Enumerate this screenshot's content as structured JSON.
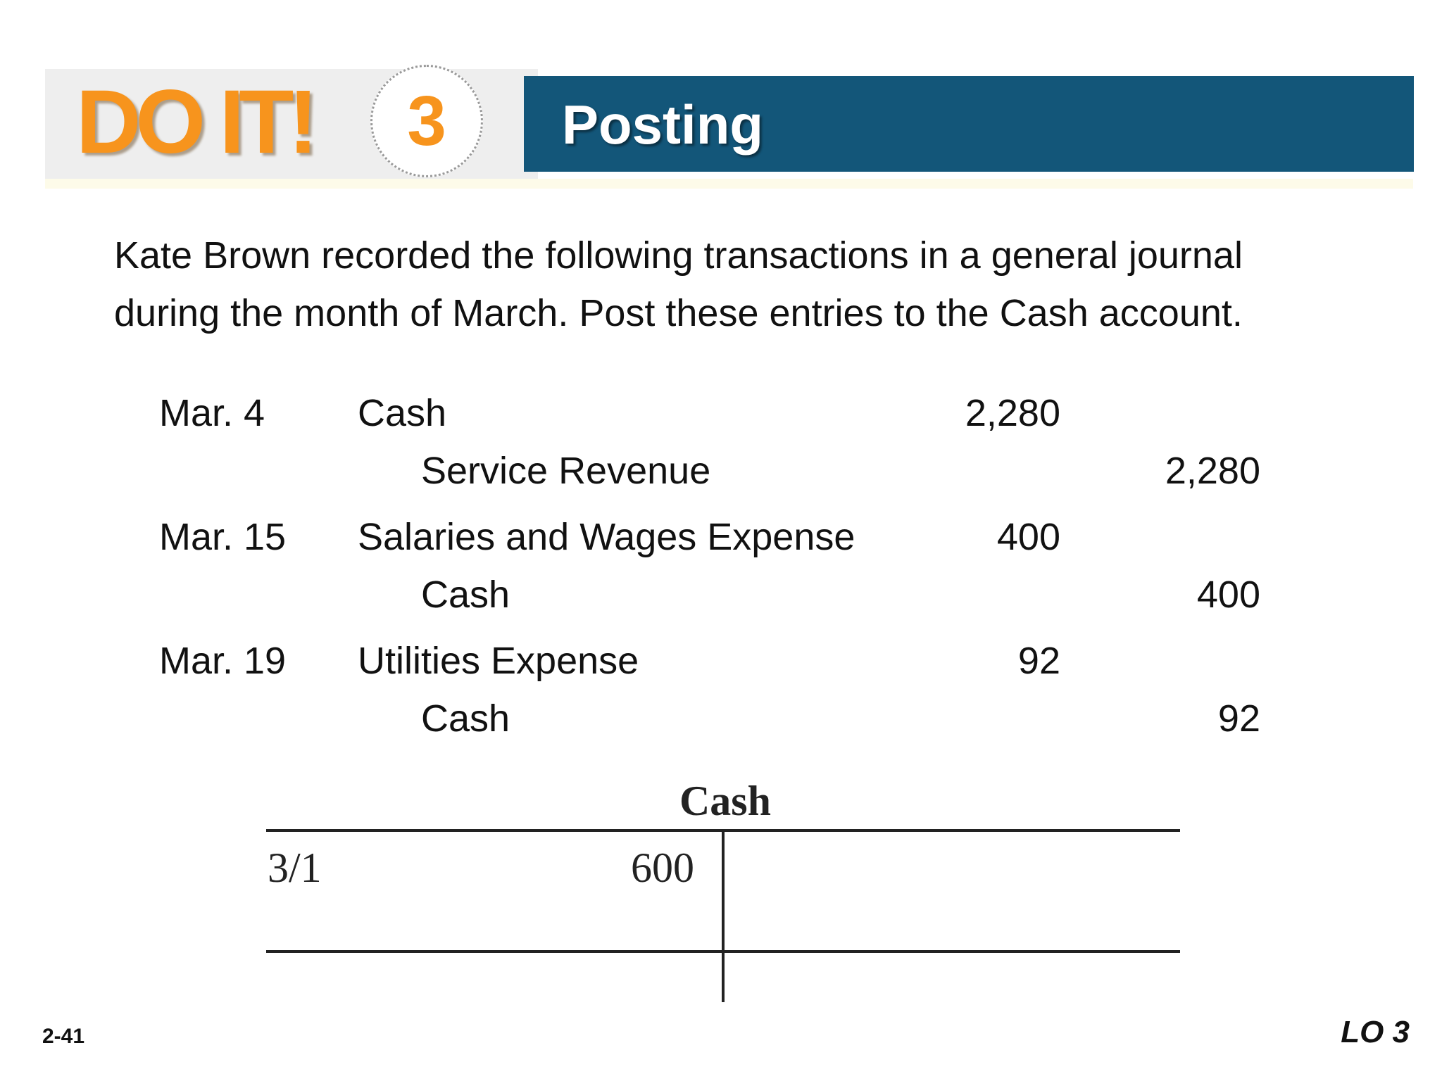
{
  "header": {
    "do_it_label": "DO IT!",
    "number": "3",
    "title": "Posting"
  },
  "intro": {
    "line1": "Kate Brown recorded the following transactions in a general journal",
    "line2": "during the month of March. Post these entries to the Cash account."
  },
  "journal": [
    {
      "date": "Mar. 4",
      "debit_account": "Cash",
      "debit_amount": "2,280",
      "credit_account": "Service Revenue",
      "credit_amount": "2,280"
    },
    {
      "date": "Mar. 15",
      "debit_account": "Salaries and Wages Expense",
      "debit_amount": "400",
      "credit_account": "Cash",
      "credit_amount": "400"
    },
    {
      "date": "Mar. 19",
      "debit_account": "Utilities Expense",
      "debit_amount": "92",
      "credit_account": "Cash",
      "credit_amount": "92"
    }
  ],
  "t_account": {
    "title": "Cash",
    "debit_entries": [
      {
        "date": "3/1",
        "amount": "600"
      }
    ]
  },
  "footer": {
    "slide_number": "2-41",
    "learning_objective": "LO 3"
  },
  "colors": {
    "accent_orange": "#f7941d",
    "banner_blue": "#135679",
    "banner_gray": "#eeeeee"
  }
}
